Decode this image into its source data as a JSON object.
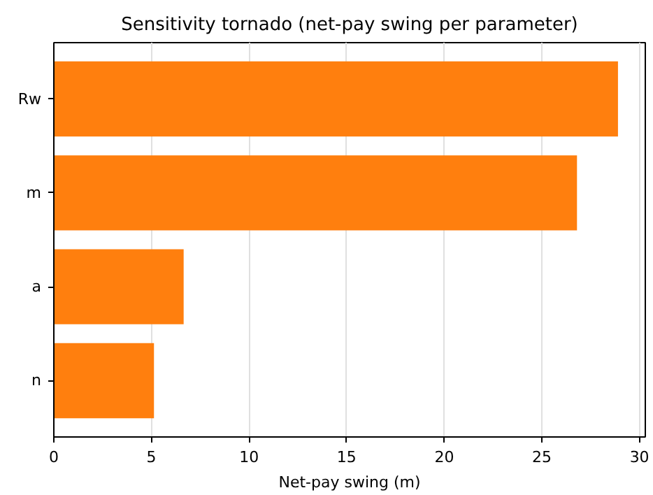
{
  "chart_data": {
    "type": "bar",
    "orientation": "horizontal",
    "title": "Sensitivity tornado (net-pay swing per parameter)",
    "xlabel": "Net-pay swing (m)",
    "categories": [
      "Rw",
      "m",
      "a",
      "n"
    ],
    "values": [
      28.9,
      26.8,
      6.65,
      5.13
    ],
    "color": "#ff7f0e",
    "xlim": [
      0,
      30.3
    ],
    "xticks": [
      0,
      5,
      10,
      15,
      20,
      25,
      30
    ],
    "grid": "x"
  }
}
